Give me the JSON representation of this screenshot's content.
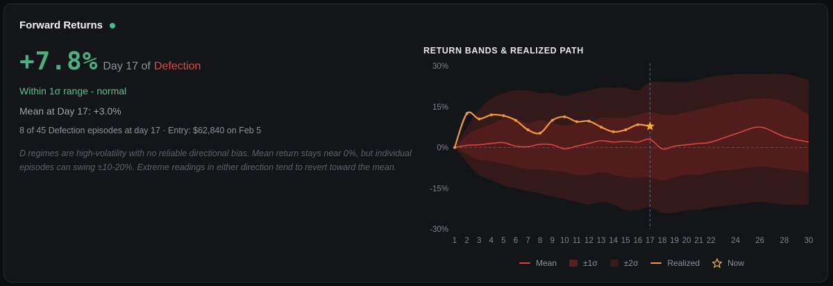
{
  "header": {
    "title": "Forward Returns",
    "status_color": "#3fbf8a"
  },
  "summary": {
    "return_value": "+7.8%",
    "return_color": "#4caf7f",
    "day_text": "Day 17 of",
    "regime": "Defection",
    "regime_color": "#e0493b",
    "range_status": "Within 1σ range - normal",
    "range_color": "#5fc08f",
    "mean_text": "Mean at Day 17: +3.0%",
    "episodes_text": "8 of 45 Defection episodes at day 17 · Entry: $62,840 on Feb 5",
    "note": "D regimes are high-volatility with no reliable directional bias. Mean return stays near 0%, but individual episodes can swing ±10-20%. Extreme readings in either direction tend to revert toward the mean."
  },
  "chart_data": {
    "type": "line",
    "title": "RETURN BANDS & REALIZED PATH",
    "xlabel": "",
    "ylabel": "",
    "x_ticks": [
      1,
      2,
      3,
      4,
      5,
      6,
      7,
      8,
      9,
      10,
      11,
      12,
      13,
      14,
      15,
      16,
      17,
      18,
      19,
      20,
      21,
      22,
      24,
      26,
      28,
      30
    ],
    "y_ticks": [
      30,
      15,
      0,
      -15,
      -30
    ],
    "y_tick_labels": [
      "30%",
      "15%",
      "0%",
      "-15%",
      "-30%"
    ],
    "xlim": [
      1,
      30
    ],
    "ylim": [
      -30,
      30
    ],
    "current_day": 17,
    "bands": [
      {
        "day": 1,
        "mean": 0,
        "s1_lo": 0,
        "s1_hi": 0,
        "s2_lo": 0,
        "s2_hi": 0
      },
      {
        "day": 2,
        "mean": 0.8,
        "s1_lo": -2.5,
        "s1_hi": 4.5,
        "s2_lo": -5.5,
        "s2_hi": 7.5
      },
      {
        "day": 3,
        "mean": 1.0,
        "s1_lo": -4.5,
        "s1_hi": 7,
        "s2_lo": -10,
        "s2_hi": 14
      },
      {
        "day": 4,
        "mean": 1.5,
        "s1_lo": -5,
        "s1_hi": 8.5,
        "s2_lo": -12,
        "s2_hi": 18
      },
      {
        "day": 5,
        "mean": 1.8,
        "s1_lo": -6,
        "s1_hi": 10.5,
        "s2_lo": -14,
        "s2_hi": 20
      },
      {
        "day": 6,
        "mean": 0.5,
        "s1_lo": -7,
        "s1_hi": 10.5,
        "s2_lo": -15,
        "s2_hi": 21
      },
      {
        "day": 7,
        "mean": 0.3,
        "s1_lo": -8,
        "s1_hi": 9,
        "s2_lo": -16,
        "s2_hi": 21
      },
      {
        "day": 8,
        "mean": 1.2,
        "s1_lo": -8,
        "s1_hi": 10,
        "s2_lo": -17,
        "s2_hi": 20
      },
      {
        "day": 9,
        "mean": 1.0,
        "s1_lo": -8.5,
        "s1_hi": 9,
        "s2_lo": -18,
        "s2_hi": 20
      },
      {
        "day": 10,
        "mean": -0.5,
        "s1_lo": -9,
        "s1_hi": 8,
        "s2_lo": -19,
        "s2_hi": 19
      },
      {
        "day": 11,
        "mean": 0.5,
        "s1_lo": -10,
        "s1_hi": 9,
        "s2_lo": -20,
        "s2_hi": 20
      },
      {
        "day": 12,
        "mean": 1.5,
        "s1_lo": -10,
        "s1_hi": 9,
        "s2_lo": -21,
        "s2_hi": 21
      },
      {
        "day": 13,
        "mean": 2.5,
        "s1_lo": -9,
        "s1_hi": 11,
        "s2_lo": -20,
        "s2_hi": 22
      },
      {
        "day": 14,
        "mean": 2.0,
        "s1_lo": -10,
        "s1_hi": 11,
        "s2_lo": -21,
        "s2_hi": 22
      },
      {
        "day": 15,
        "mean": 2.3,
        "s1_lo": -11,
        "s1_hi": 11,
        "s2_lo": -23,
        "s2_hi": 22
      },
      {
        "day": 16,
        "mean": 2.0,
        "s1_lo": -11,
        "s1_hi": 12,
        "s2_lo": -23,
        "s2_hi": 21
      },
      {
        "day": 17,
        "mean": 3.0,
        "s1_lo": -11,
        "s1_hi": 13,
        "s2_lo": -22,
        "s2_hi": 24
      },
      {
        "day": 18,
        "mean": -0.5,
        "s1_lo": -12,
        "s1_hi": 12,
        "s2_lo": -24,
        "s2_hi": 24
      },
      {
        "day": 19,
        "mean": 0.5,
        "s1_lo": -11,
        "s1_hi": 12,
        "s2_lo": -24,
        "s2_hi": 24
      },
      {
        "day": 20,
        "mean": 1.0,
        "s1_lo": -10,
        "s1_hi": 13,
        "s2_lo": -23,
        "s2_hi": 24
      },
      {
        "day": 21,
        "mean": 1.5,
        "s1_lo": -10,
        "s1_hi": 14,
        "s2_lo": -23,
        "s2_hi": 25
      },
      {
        "day": 22,
        "mean": 2.0,
        "s1_lo": -9,
        "s1_hi": 15,
        "s2_lo": -22,
        "s2_hi": 26
      },
      {
        "day": 24,
        "mean": 5.0,
        "s1_lo": -8,
        "s1_hi": 17,
        "s2_lo": -21,
        "s2_hi": 27
      },
      {
        "day": 26,
        "mean": 7.5,
        "s1_lo": -7,
        "s1_hi": 18,
        "s2_lo": -20,
        "s2_hi": 27
      },
      {
        "day": 28,
        "mean": 4.0,
        "s1_lo": -8,
        "s1_hi": 17,
        "s2_lo": -21,
        "s2_hi": 27
      },
      {
        "day": 30,
        "mean": 2.0,
        "s1_lo": -9,
        "s1_hi": 12,
        "s2_lo": -21,
        "s2_hi": 25
      }
    ],
    "realized": [
      {
        "day": 1,
        "value": 0
      },
      {
        "day": 2,
        "value": 12.5
      },
      {
        "day": 3,
        "value": 10.5
      },
      {
        "day": 4,
        "value": 12
      },
      {
        "day": 5,
        "value": 11.7
      },
      {
        "day": 6,
        "value": 10
      },
      {
        "day": 7,
        "value": 6.5
      },
      {
        "day": 8,
        "value": 5.3
      },
      {
        "day": 9,
        "value": 10
      },
      {
        "day": 10,
        "value": 11.3
      },
      {
        "day": 11,
        "value": 9.5
      },
      {
        "day": 12,
        "value": 9.7
      },
      {
        "day": 13,
        "value": 7.5
      },
      {
        "day": 14,
        "value": 5.8
      },
      {
        "day": 15,
        "value": 6.5
      },
      {
        "day": 16,
        "value": 8.4
      },
      {
        "day": 17,
        "value": 7.8
      }
    ],
    "legend": [
      {
        "name": "Mean",
        "kind": "line",
        "color": "#d8463f"
      },
      {
        "name": "±1σ",
        "kind": "box",
        "color": "#5a1f1f"
      },
      {
        "name": "±2σ",
        "kind": "box",
        "color": "#3a1a1b"
      },
      {
        "name": "Realized",
        "kind": "line",
        "color": "#f39a3a"
      },
      {
        "name": "Now",
        "kind": "star",
        "color": "#f3b02f"
      }
    ],
    "colors": {
      "band1": "#5b1e1e",
      "band2": "#3a1a1b",
      "mean": "#d8463f",
      "realized": "#f39a3a",
      "now": "#f3b02f",
      "grid": "#3a3b40",
      "tick": "#7e828b"
    }
  }
}
